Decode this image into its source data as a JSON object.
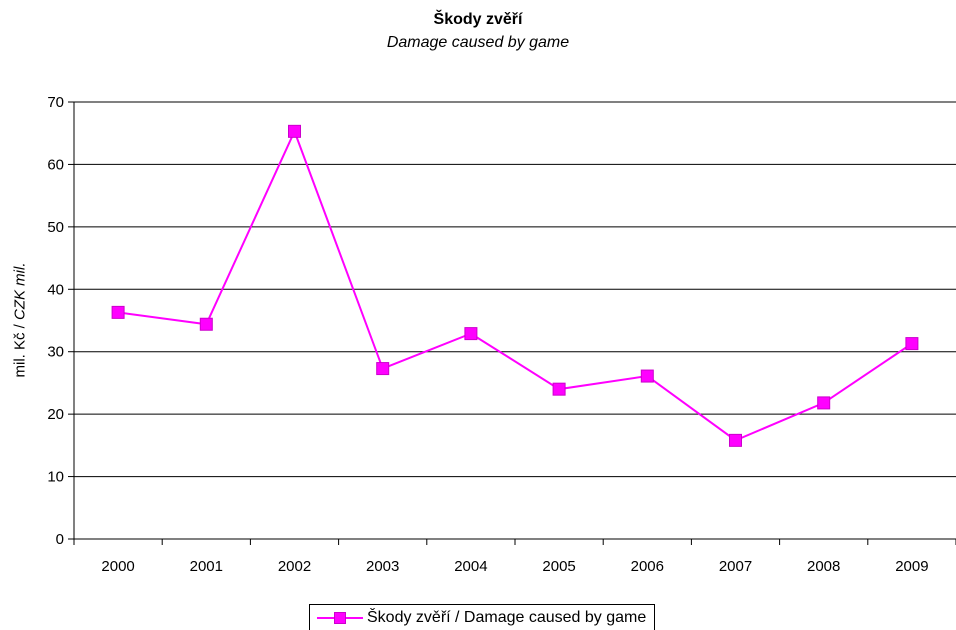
{
  "chart_data": {
    "type": "line",
    "title": "Škody zvěří",
    "subtitle": "Damage caused by game",
    "ylabel_normal": "mil. Kč / ",
    "ylabel_italic": "CZK mil.",
    "xlabel": "",
    "categories": [
      "2000",
      "2001",
      "2002",
      "2003",
      "2004",
      "2005",
      "2006",
      "2007",
      "2008",
      "2009"
    ],
    "series": [
      {
        "name": "Škody zvěří / Damage caused by game",
        "values": [
          36.3,
          34.4,
          65.3,
          27.3,
          32.9,
          24.0,
          26.1,
          15.8,
          21.8,
          31.3
        ],
        "color": "#ff00ff",
        "marker": "square"
      }
    ],
    "ylim": [
      0,
      70
    ],
    "yticks": [
      0,
      10,
      20,
      30,
      40,
      50,
      60,
      70
    ],
    "grid": true,
    "legend_position": "bottom"
  }
}
